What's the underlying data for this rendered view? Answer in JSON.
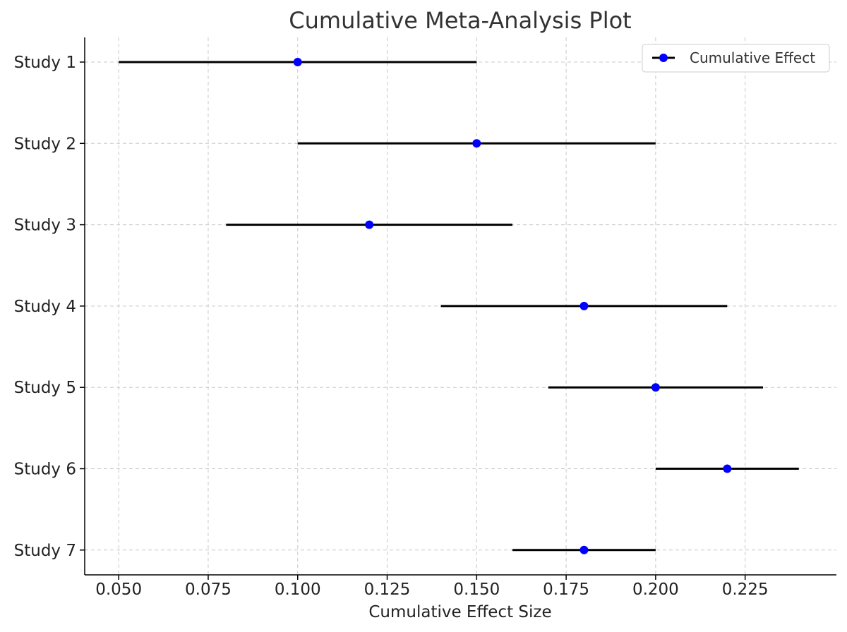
{
  "chart_data": {
    "type": "scatter",
    "title": "Cumulative Meta-Analysis Plot",
    "xlabel": "Cumulative Effect Size",
    "ylabel": "",
    "xlim": [
      0.0405,
      0.2505
    ],
    "x_ticks": [
      0.05,
      0.075,
      0.1,
      0.125,
      0.15,
      0.175,
      0.2,
      0.225
    ],
    "x_tick_labels": [
      "0.050",
      "0.075",
      "0.100",
      "0.125",
      "0.150",
      "0.175",
      "0.200",
      "0.225"
    ],
    "categories": [
      "Study 1",
      "Study 2",
      "Study 3",
      "Study 4",
      "Study 5",
      "Study 6",
      "Study 7"
    ],
    "series": [
      {
        "name": "Cumulative Effect",
        "effect": [
          0.1,
          0.15,
          0.12,
          0.18,
          0.2,
          0.22,
          0.18
        ],
        "ci_lower": [
          0.05,
          0.1,
          0.08,
          0.14,
          0.17,
          0.2,
          0.16
        ],
        "ci_upper": [
          0.15,
          0.2,
          0.16,
          0.22,
          0.23,
          0.24,
          0.2
        ]
      }
    ],
    "grid": true,
    "grid_style": "dashed",
    "legend_position": "top-right",
    "colors": {
      "marker": "#0000ff",
      "errorbar": "#000000",
      "grid": "#c8c8c8",
      "axis": "#000000"
    }
  }
}
